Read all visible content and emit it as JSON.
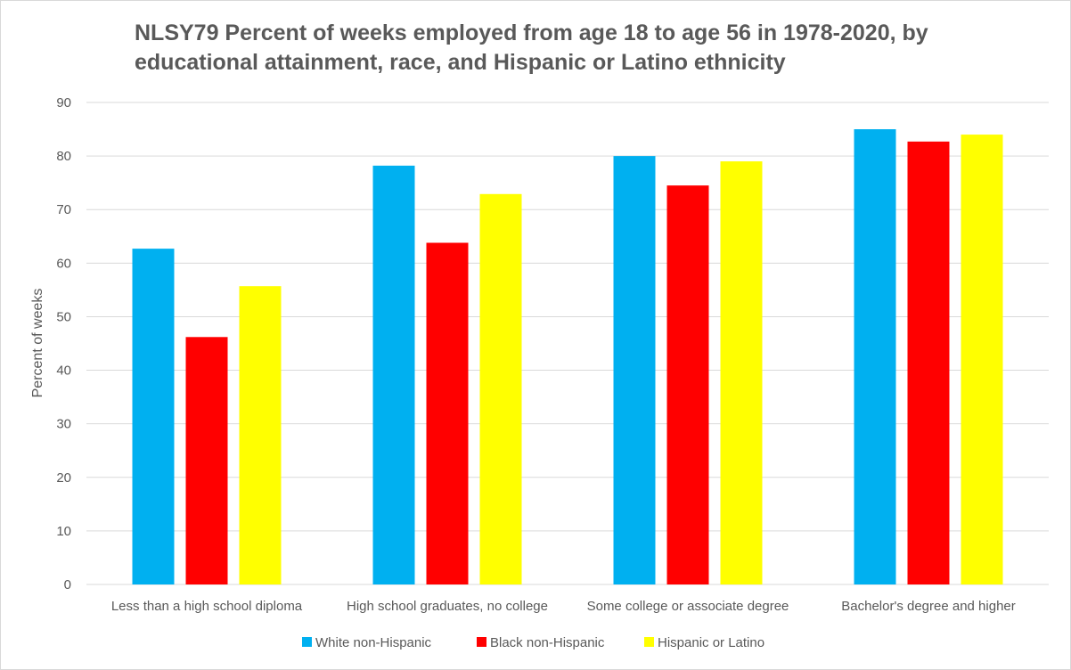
{
  "chart_data": {
    "type": "bar",
    "title": "NLSY79 Percent of weeks employed from age 18 to age 56 in 1978-2020, by educational attainment, race, and Hispanic or Latino ethnicity",
    "xlabel": "",
    "ylabel": "Percent of weeks",
    "ylim": [
      0,
      90
    ],
    "yticks": [
      "0",
      "10",
      "20",
      "30",
      "40",
      "50",
      "60",
      "70",
      "80",
      "90"
    ],
    "grid": true,
    "legend_position": "bottom",
    "categories": [
      "Less than a high school diploma",
      "High school graduates, no college",
      "Some college or associate degree",
      "Bachelor's degree and higher"
    ],
    "series": [
      {
        "name": "White non-Hispanic",
        "color": "#00b0f0",
        "values": [
          62.7,
          78.2,
          80.0,
          85.0
        ]
      },
      {
        "name": "Black non-Hispanic",
        "color": "#ff0000",
        "values": [
          46.2,
          63.8,
          74.5,
          82.7
        ]
      },
      {
        "name": "Hispanic or Latino",
        "color": "#ffff00",
        "values": [
          55.7,
          72.9,
          79.0,
          84.0
        ]
      }
    ]
  }
}
